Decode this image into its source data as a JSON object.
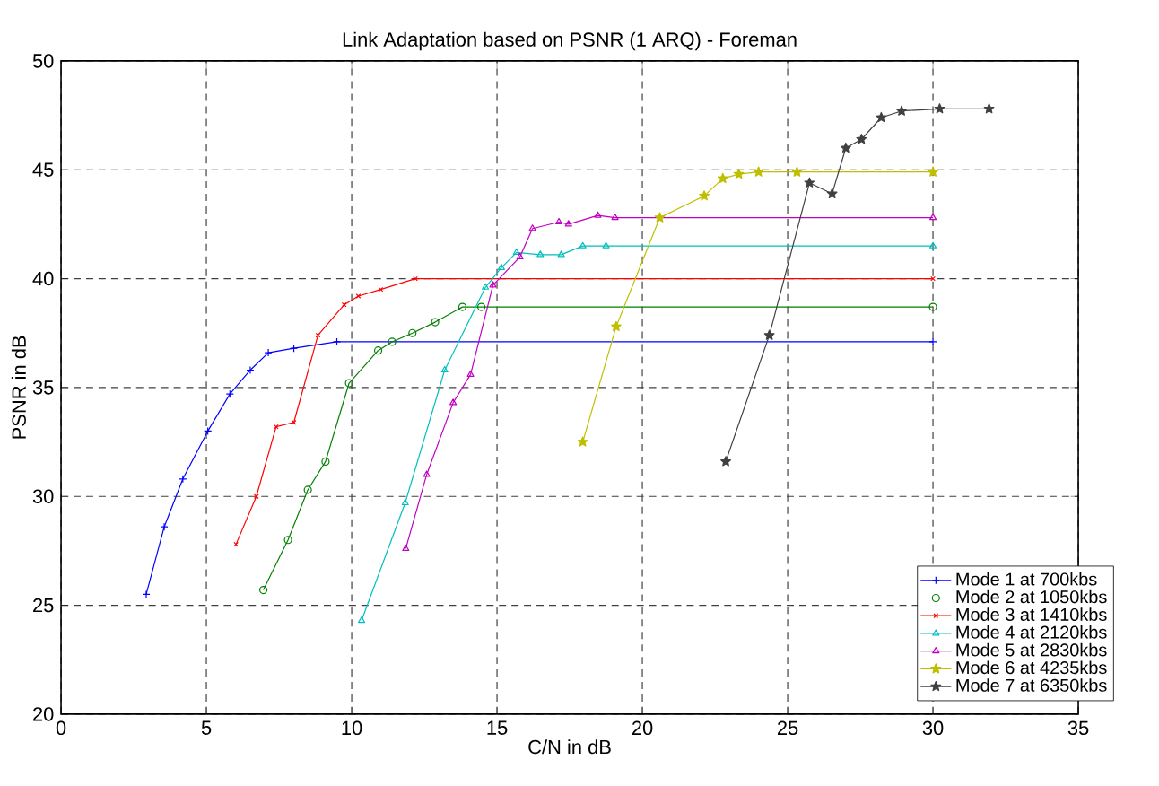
{
  "chart_data": {
    "type": "line",
    "title": "Link Adaptation based on PSNR (1 ARQ) - Foreman",
    "xlabel": "C/N in dB",
    "ylabel": "PSNR in dB",
    "xlim": [
      0,
      35
    ],
    "ylim": [
      20,
      50
    ],
    "xticks": [
      0,
      5,
      10,
      15,
      20,
      25,
      30,
      35
    ],
    "yticks": [
      20,
      25,
      30,
      35,
      40,
      45,
      50
    ],
    "grid": true,
    "legend": "bottom right",
    "line_style": "solid",
    "series": [
      {
        "name": "Mode 1 at 700kbs",
        "color": "#0000ff",
        "marker": "plus",
        "x": [
          2.93,
          3.55,
          4.19,
          5.05,
          5.81,
          6.51,
          7.13,
          8.01,
          9.49,
          30
        ],
        "values": [
          25.5,
          28.6,
          30.8,
          33.0,
          34.7,
          35.8,
          36.6,
          36.8,
          37.1,
          37.1
        ]
      },
      {
        "name": "Mode 2 at 1050kbs",
        "color": "#008000",
        "marker": "circle",
        "x": [
          6.96,
          7.81,
          8.49,
          9.1,
          9.91,
          10.91,
          11.39,
          12.09,
          12.87,
          13.81,
          14.46,
          30
        ],
        "values": [
          25.7,
          28.0,
          30.3,
          31.6,
          35.2,
          36.7,
          37.1,
          37.5,
          38.0,
          38.7,
          38.7,
          38.7
        ]
      },
      {
        "name": "Mode 3 at 1410kbs",
        "color": "#ff0000",
        "marker": "cross",
        "x": [
          6.02,
          6.72,
          7.4,
          8.01,
          8.84,
          9.74,
          10.23,
          11.0,
          12.19,
          30
        ],
        "values": [
          27.8,
          30.0,
          33.2,
          33.4,
          37.4,
          38.8,
          39.2,
          39.5,
          40.0,
          40.0
        ]
      },
      {
        "name": "Mode 4 at 2120kbs",
        "color": "#00bfbf",
        "marker": "triangle-down",
        "x": [
          10.34,
          11.84,
          13.2,
          14.6,
          15.15,
          15.67,
          16.49,
          17.21,
          17.95,
          18.75,
          30
        ],
        "values": [
          24.3,
          29.7,
          35.8,
          39.6,
          40.5,
          41.2,
          41.1,
          41.1,
          41.5,
          41.5,
          41.5
        ]
      },
      {
        "name": "Mode 5 at 2830kbs",
        "color": "#bf00bf",
        "marker": "triangle",
        "x": [
          11.86,
          12.58,
          13.49,
          14.09,
          14.86,
          15.79,
          16.22,
          17.13,
          17.46,
          18.47,
          19.06,
          30
        ],
        "values": [
          27.6,
          31.0,
          34.3,
          35.6,
          39.7,
          41.0,
          42.3,
          42.6,
          42.5,
          42.9,
          42.8,
          42.8
        ]
      },
      {
        "name": "Mode 6 at 4235kbs",
        "color": "#bfbf00",
        "marker": "star",
        "x": [
          17.95,
          19.1,
          20.6,
          22.13,
          22.77,
          23.32,
          24.0,
          25.32,
          30
        ],
        "values": [
          32.5,
          37.8,
          42.8,
          43.8,
          44.6,
          44.8,
          44.9,
          44.9,
          44.9
        ]
      },
      {
        "name": "Mode 7 at 6350kbs",
        "color": "#404040",
        "marker": "star",
        "x": [
          22.87,
          24.37,
          25.75,
          26.53,
          27.0,
          27.54,
          28.22,
          28.92,
          30.23,
          31.93
        ],
        "values": [
          31.6,
          37.4,
          44.4,
          43.9,
          46.0,
          46.4,
          47.4,
          47.7,
          47.8,
          47.8
        ]
      }
    ]
  }
}
